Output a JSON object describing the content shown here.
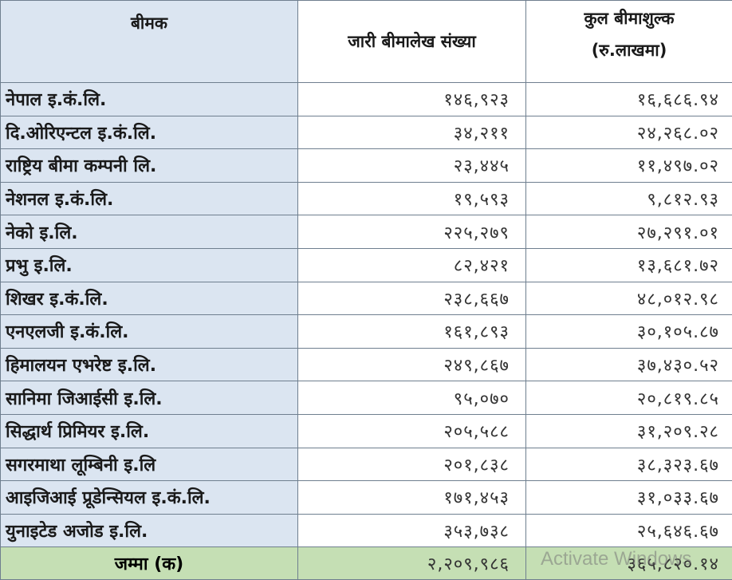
{
  "header": {
    "col1": "बीमक",
    "col2": "जारी बीमालेख संख्या",
    "col3_line1": "कुल बीमाशुल्क",
    "col3_line2": "(रु.लाखमा)"
  },
  "rows": [
    {
      "name": "नेपाल इ.कं.लि.",
      "policies": "१४६,९२३",
      "premium": "१६,६८६.९४"
    },
    {
      "name": "दि.ओरिएन्टल इ.कं.लि.",
      "policies": "३४,२११",
      "premium": "२४,२६८.०२"
    },
    {
      "name": "राष्ट्रिय बीमा कम्पनी लि.",
      "policies": "२३,४४५",
      "premium": "११,४९७.०२"
    },
    {
      "name": "नेशनल इ.कं.लि.",
      "policies": "१९,५९३",
      "premium": "९,८१२.९३"
    },
    {
      "name": "नेको इ.लि.",
      "policies": "२२५,२७९",
      "premium": "२७,२९१.०१"
    },
    {
      "name": "प्रभु इ.लि.",
      "policies": "८२,४२१",
      "premium": "१३,६८१.७२"
    },
    {
      "name": "शिखर इ.कं.लि.",
      "policies": "२३८,६६७",
      "premium": "४८,०१२.९८"
    },
    {
      "name": "एनएलजी इ.कं.लि.",
      "policies": "१६१,८९३",
      "premium": "३०,१०५.८७"
    },
    {
      "name": "हिमालयन एभरेष्ट इ.लि.",
      "policies": "२४९,८६७",
      "premium": "३७,४३०.५२"
    },
    {
      "name": "सानिमा जिआईसी इ.लि.",
      "policies": "९५,०७०",
      "premium": "२०,८१९.८५"
    },
    {
      "name": "सिद्धार्थ प्रिमियर इ.लि.",
      "policies": "२०५,५८८",
      "premium": "३१,२०९.२८"
    },
    {
      "name": "सगरमाथा लूम्बिनी इ.लि",
      "policies": "२०१,८३८",
      "premium": "३८,३२३.६७"
    },
    {
      "name": "आइजिआई प्रूडेन्सियल इ.कं.लि.",
      "policies": "१७१,४५३",
      "premium": "३१,०३३.६७"
    },
    {
      "name": "युनाइटेड अजोड इ.लि.",
      "policies": "३५३,७३८",
      "premium": "२५,६४६.६७"
    }
  ],
  "total": {
    "label": "जम्मा (क)",
    "policies": "२,२०९,९८६",
    "premium": "३६५,८२०.१४"
  },
  "watermark": "Activate Windows"
}
